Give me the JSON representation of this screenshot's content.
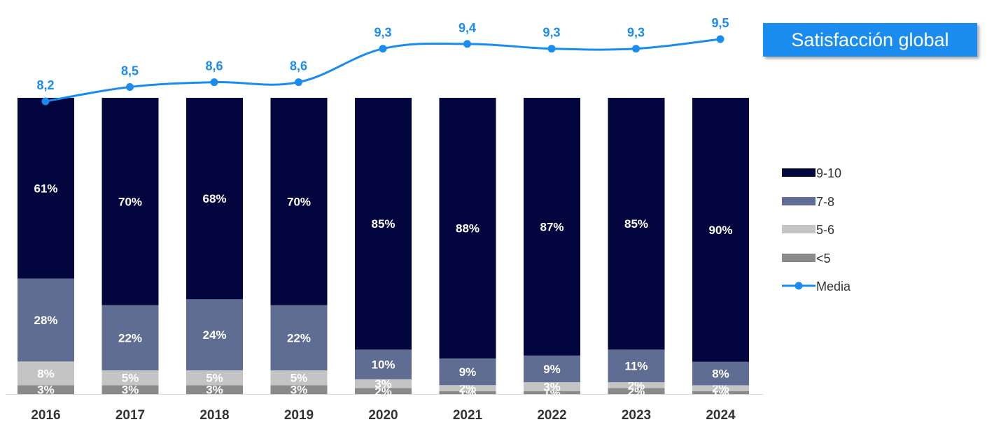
{
  "title": "Satisfacción global",
  "colors": {
    "9-10": "#03053f",
    "7-8": "#5f6d92",
    "5-6": "#c4c4c4",
    "<5": "#8a8a8a",
    "media": "#1a8cf0"
  },
  "legend": [
    "9-10",
    "7-8",
    "5-6",
    "<5",
    "Media"
  ],
  "chart_data": {
    "type": "bar",
    "stacked": true,
    "categories": [
      "2016",
      "2017",
      "2018",
      "2019",
      "2020",
      "2021",
      "2022",
      "2023",
      "2024"
    ],
    "series": [
      {
        "name": "<5",
        "values": [
          3,
          3,
          3,
          3,
          2,
          1,
          1,
          2,
          1
        ],
        "labels": [
          "3%",
          "3%",
          "3%",
          "3%",
          "2%",
          "1%",
          "1%",
          "2%",
          "1%"
        ]
      },
      {
        "name": "5-6",
        "values": [
          8,
          5,
          5,
          5,
          3,
          2,
          3,
          2,
          2
        ],
        "labels": [
          "8%",
          "5%",
          "5%",
          "5%",
          "3%",
          "2%",
          "3%",
          "2%",
          "2%"
        ]
      },
      {
        "name": "7-8",
        "values": [
          28,
          22,
          24,
          22,
          10,
          9,
          9,
          11,
          8
        ],
        "labels": [
          "28%",
          "22%",
          "24%",
          "22%",
          "10%",
          "9%",
          "9%",
          "11%",
          "8%"
        ]
      },
      {
        "name": "9-10",
        "values": [
          61,
          70,
          68,
          70,
          85,
          88,
          87,
          85,
          90
        ],
        "labels": [
          "61%",
          "70%",
          "68%",
          "70%",
          "85%",
          "88%",
          "87%",
          "85%",
          "90%"
        ]
      }
    ],
    "line": {
      "name": "Media",
      "values": [
        8.2,
        8.5,
        8.6,
        8.6,
        9.3,
        9.4,
        9.3,
        9.3,
        9.5
      ],
      "labels": [
        "8,2",
        "8,5",
        "8,6",
        "8,6",
        "9,3",
        "9,4",
        "9,3",
        "9,3",
        "9,5"
      ]
    },
    "legend_position": "right"
  }
}
